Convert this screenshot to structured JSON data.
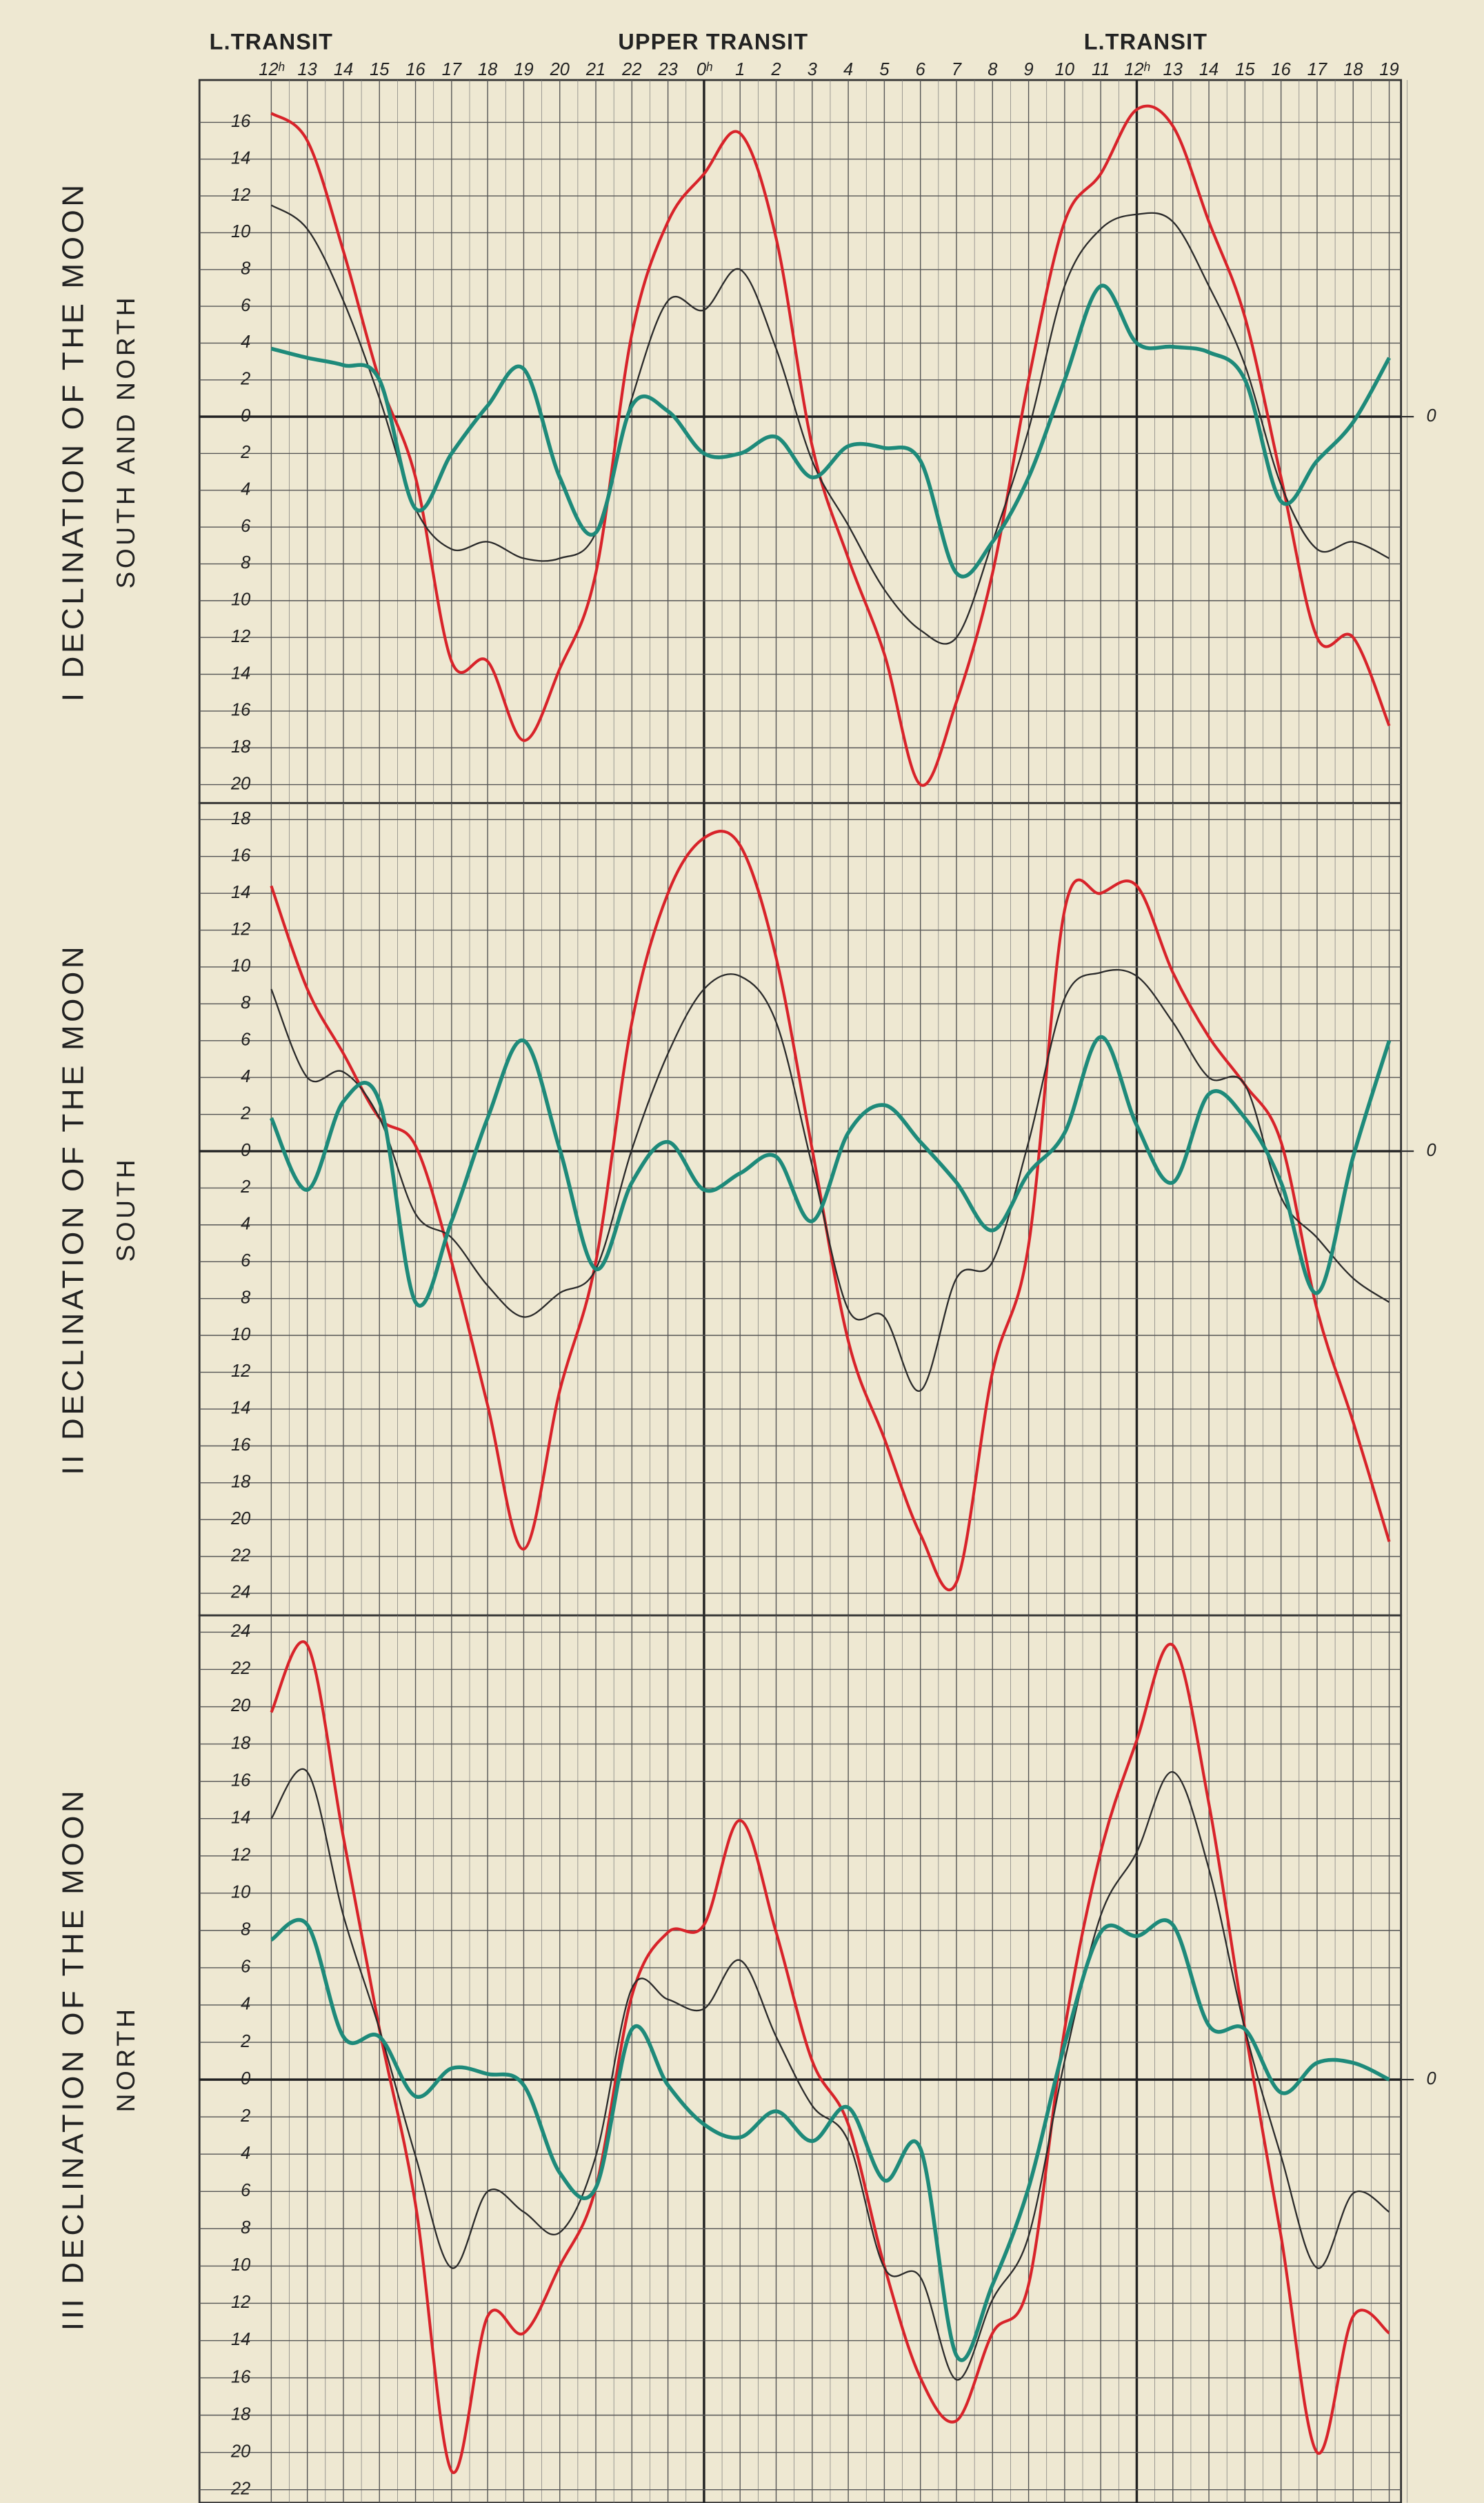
{
  "chart_data": [
    {
      "type": "line",
      "title": "I DECLINATION OF THE MOON",
      "subtitle": "SOUTH AND NORTH",
      "annotations": [
        "L.TRANSIT",
        "UPPER TRANSIT",
        "L.TRANSIT"
      ],
      "categories": [
        "12ʰ",
        "13",
        "14",
        "15",
        "16",
        "17",
        "18",
        "19",
        "20",
        "21",
        "22",
        "23",
        "0ʰ",
        "1",
        "2",
        "3",
        "4",
        "5",
        "6",
        "7",
        "8",
        "9",
        "10",
        "11",
        "12ʰ",
        "13",
        "14",
        "15",
        "16",
        "17",
        "18",
        "19"
      ],
      "ylim": [
        -21,
        18.3
      ],
      "yticks": [
        16,
        14,
        12,
        10,
        8,
        6,
        4,
        2,
        0,
        {
          "value": -2,
          "label": "2"
        },
        {
          "value": -4,
          "label": "4"
        },
        {
          "value": -6,
          "label": "6"
        },
        {
          "value": -8,
          "label": "8"
        },
        {
          "value": -10,
          "label": "10"
        },
        {
          "value": -12,
          "label": "12"
        },
        {
          "value": -14,
          "label": "14"
        },
        {
          "value": -16,
          "label": "16"
        },
        {
          "value": -18,
          "label": "18"
        },
        {
          "value": -20,
          "label": "20"
        }
      ],
      "y2lim": [
        -21,
        18.3
      ],
      "y2ticks": [
        0
      ],
      "grid": true,
      "series": [
        {
          "color": "#d8232a",
          "values": [
            16.5,
            15,
            9,
            2,
            -3.3,
            -13.3,
            -13.3,
            -17.6,
            -13.7,
            -8.5,
            4.5,
            10.6,
            13.2,
            15.4,
            9.7,
            -1.6,
            -7.7,
            -12.9,
            -20,
            -15.5,
            -8.5,
            2,
            10.6,
            13.2,
            16.7,
            15.8,
            10.6,
            5.4,
            -3.3,
            -12,
            -12,
            -16.8
          ]
        },
        {
          "color": "#2a2a2a",
          "values": [
            11.5,
            10.2,
            6.3,
            1,
            -5,
            -7.2,
            -6.8,
            -7.7,
            -7.7,
            -6.3,
            1,
            6.3,
            5.8,
            8,
            3.7,
            -2.4,
            -5.9,
            -9.4,
            -11.6,
            -12,
            -6.8,
            -0.7,
            7.1,
            10.2,
            11,
            10.6,
            7.1,
            2.8,
            -3.7,
            -7.2,
            -6.8,
            -7.7
          ]
        },
        {
          "color": "#1e8a7a",
          "values": [
            3.7,
            3.2,
            2.8,
            2,
            -5,
            -2,
            0.6,
            2.6,
            -3.3,
            -6.3,
            0.6,
            0.3,
            -2,
            -2,
            -1.1,
            -3.3,
            -1.6,
            -1.7,
            -2.4,
            -8.5,
            -6.8,
            -3.3,
            2,
            7.1,
            4,
            3.8,
            3.5,
            2,
            -4.6,
            -2.4,
            -0.3,
            3.2
          ]
        }
      ]
    },
    {
      "type": "line",
      "title": "II DECLINATION OF THE MOON",
      "subtitle": "SOUTH",
      "ylim": [
        -25.2,
        18.9
      ],
      "yticks": [
        18,
        16,
        14,
        12,
        10,
        8,
        6,
        4,
        2,
        0,
        {
          "value": -2,
          "label": "2"
        },
        {
          "value": -4,
          "label": "4"
        },
        {
          "value": -6,
          "label": "6"
        },
        {
          "value": -8,
          "label": "8"
        },
        {
          "value": -10,
          "label": "10"
        },
        {
          "value": -12,
          "label": "12"
        },
        {
          "value": -14,
          "label": "14"
        },
        {
          "value": -16,
          "label": "16"
        },
        {
          "value": -18,
          "label": "18"
        },
        {
          "value": -20,
          "label": "20"
        },
        {
          "value": -22,
          "label": "22"
        },
        {
          "value": -24,
          "label": "24"
        }
      ],
      "y2lim": [
        -25.2,
        18.9
      ],
      "y2ticks": [
        0
      ],
      "grid": true,
      "series": [
        {
          "color": "#d8232a",
          "values": [
            14.4,
            8.8,
            5.3,
            1.8,
            0.3,
            -6,
            -13.8,
            -21.6,
            -13,
            -6,
            7,
            14,
            17,
            16.6,
            10.5,
            0.1,
            -10.3,
            -15.6,
            -20.8,
            -23.4,
            -12,
            -5.1,
            13.1,
            14,
            14.4,
            9.7,
            6.2,
            3.6,
            0.5,
            -8.6,
            -14.7,
            -21.2
          ]
        },
        {
          "color": "#2a2a2a",
          "values": [
            8.8,
            4,
            4.3,
            1.8,
            -3.4,
            -4.7,
            -7.3,
            -9,
            -7.7,
            -6.4,
            0.1,
            5.3,
            8.8,
            9.5,
            7,
            -0.8,
            -8.6,
            -9,
            -13,
            -6.9,
            -6,
            0.5,
            8.3,
            9.7,
            9.5,
            7,
            4,
            3.6,
            -2.5,
            -4.7,
            -6.9,
            -8.2
          ]
        },
        {
          "color": "#1e8a7a",
          "values": [
            1.8,
            -2.1,
            2.7,
            2.7,
            -8.2,
            -3.8,
            1.8,
            6,
            0.1,
            -6.4,
            -1.7,
            0.5,
            -2.1,
            -1.2,
            -0.3,
            -3.8,
            1,
            2.5,
            0.5,
            -1.7,
            -4.3,
            -1.2,
            1,
            6.2,
            1.4,
            -1.7,
            3.1,
            1.8,
            -1.7,
            -7.7,
            -0.3,
            6
          ]
        }
      ]
    },
    {
      "type": "line",
      "title": "III DECLINATION OF THE MOON",
      "subtitle": "NORTH",
      "ylim": [
        -22.7,
        24.9
      ],
      "yticks": [
        24,
        22,
        20,
        18,
        16,
        14,
        12,
        10,
        8,
        6,
        4,
        2,
        0,
        {
          "value": -2,
          "label": "2"
        },
        {
          "value": -4,
          "label": "4"
        },
        {
          "value": -6,
          "label": "6"
        },
        {
          "value": -8,
          "label": "8"
        },
        {
          "value": -10,
          "label": "10"
        },
        {
          "value": -12,
          "label": "12"
        },
        {
          "value": -14,
          "label": "14"
        },
        {
          "value": -16,
          "label": "16"
        },
        {
          "value": -18,
          "label": "18"
        },
        {
          "value": -20,
          "label": "20"
        },
        {
          "value": -22,
          "label": "22"
        }
      ],
      "y2lim": [
        -22.7,
        24.9
      ],
      "y2ticks": [
        0
      ],
      "grid": true,
      "series": [
        {
          "color": "#d8232a",
          "values": [
            19.7,
            23.3,
            13,
            2.7,
            -6.7,
            -21,
            -12.7,
            -13.6,
            -10,
            -5.8,
            4.5,
            7.9,
            8.3,
            13.9,
            7.9,
            1,
            -2.4,
            -10,
            -16,
            -18.3,
            -13.6,
            -11,
            2.7,
            12.2,
            18.2,
            23.3,
            14.8,
            2.7,
            -8.4,
            -20,
            -12.7,
            -13.6
          ]
        },
        {
          "color": "#2a2a2a",
          "values": [
            14,
            16.5,
            8.8,
            2.7,
            -4.1,
            -10.1,
            -6,
            -7.1,
            -8.2,
            -4.1,
            4.9,
            4.3,
            3.8,
            6.4,
            2.3,
            -1.4,
            -3.3,
            -10.1,
            -10.6,
            -16.1,
            -11.8,
            -8.4,
            1,
            8.8,
            12.2,
            16.5,
            11.3,
            2.7,
            -4.1,
            -10.1,
            -6.1,
            -7.1
          ]
        },
        {
          "color": "#1e8a7a",
          "values": [
            7.5,
            8.3,
            2.3,
            2.3,
            -0.9,
            0.6,
            0.3,
            -0.3,
            -5,
            -5.8,
            2.7,
            -0.3,
            -2.4,
            -3.1,
            -1.7,
            -3.3,
            -1.5,
            -5.4,
            -3.7,
            -14.8,
            -11,
            -5.8,
            1.9,
            7.9,
            7.7,
            8.3,
            2.9,
            2.7,
            -0.7,
            0.9,
            0.9,
            0
          ]
        }
      ]
    }
  ]
}
